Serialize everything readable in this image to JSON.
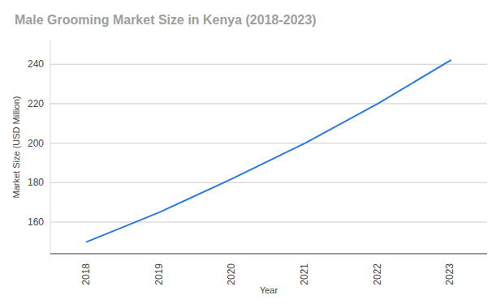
{
  "chart_data": {
    "type": "line",
    "title": "Male Grooming Market Size in Kenya (2018-2023)",
    "x_label": "Year",
    "y_label": "Market Size (USD Million)",
    "categories": [
      "2018",
      "2019",
      "2020",
      "2021",
      "2022",
      "2023"
    ],
    "values": [
      150,
      165,
      182,
      200,
      220,
      242
    ],
    "color": "#2b78e4",
    "ylim": [
      144,
      252
    ],
    "yticks": [
      160,
      180,
      200,
      220,
      240
    ],
    "grid": true
  }
}
